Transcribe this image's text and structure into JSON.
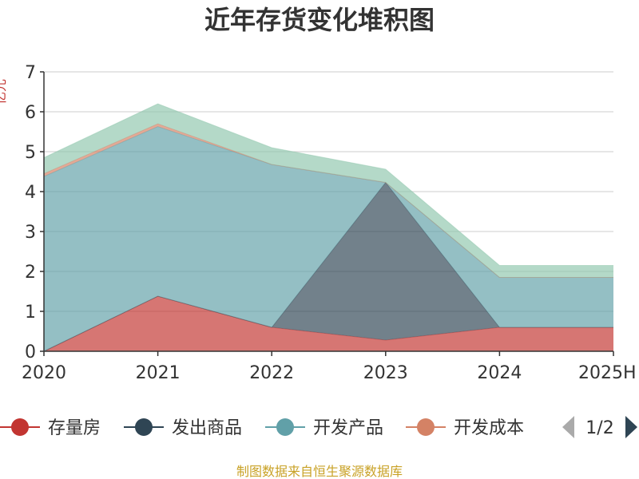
{
  "chart_data": {
    "type": "area",
    "stacked": true,
    "title": "近年存货变化堆积图",
    "ylabel": "亿元",
    "categories": [
      "2020",
      "2021",
      "2022",
      "2023",
      "2024",
      "2025H"
    ],
    "ylim": [
      0,
      7
    ],
    "yticks": [
      0,
      1,
      2,
      3,
      4,
      5,
      6,
      7
    ],
    "grid": true,
    "legend_position": "bottom",
    "series": [
      {
        "name": "存量房",
        "color": "#c23531",
        "values": [
          0.0,
          1.38,
          0.6,
          0.28,
          0.6,
          0.6
        ]
      },
      {
        "name": "发出商品",
        "color": "#2f4554",
        "values": [
          0.0,
          0.0,
          0.0,
          3.95,
          0.0,
          0.0
        ]
      },
      {
        "name": "开发产品",
        "color": "#61a0a8",
        "values": [
          4.38,
          4.25,
          4.08,
          0.0,
          1.25,
          1.25
        ]
      },
      {
        "name": "开发成本",
        "color": "#d48265",
        "values": [
          0.07,
          0.07,
          0.0,
          0.0,
          0.0,
          0.0
        ]
      },
      {
        "name": "",
        "color": "#91c7ae",
        "values": [
          0.4,
          0.5,
          0.42,
          0.33,
          0.3,
          0.3
        ]
      }
    ]
  },
  "legend": {
    "page_indicator": "1/2",
    "prev_icon": "triangle-left-icon",
    "next_icon": "triangle-right-icon"
  },
  "footer": {
    "source_text": "制图数据来自恒生聚源数据库"
  }
}
